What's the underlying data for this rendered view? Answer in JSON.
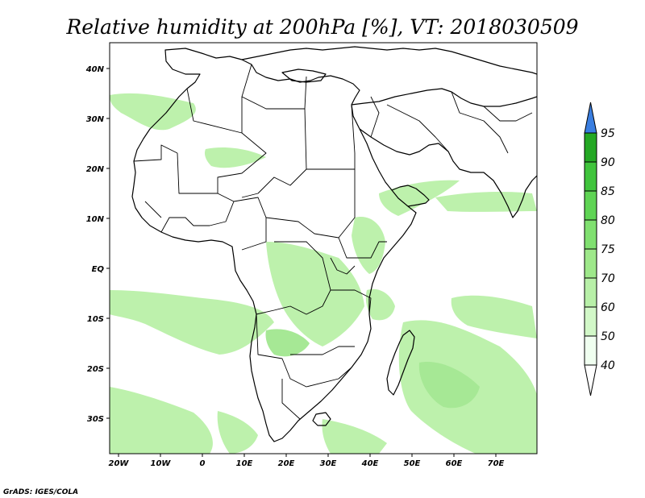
{
  "title": "Relative humidity at 200hPa [%], VT: 2018030509",
  "credit": "GrADS: IGES/COLA",
  "map": {
    "lon_labels": [
      "20W",
      "10W",
      "0",
      "10E",
      "20E",
      "30E",
      "40E",
      "50E",
      "60E",
      "70E"
    ],
    "lat_labels": [
      "40N",
      "30N",
      "20N",
      "10N",
      "EQ",
      "10S",
      "20S",
      "30S"
    ]
  },
  "colorbar": {
    "levels": [
      "40",
      "50",
      "60",
      "70",
      "75",
      "80",
      "85",
      "90",
      "95"
    ],
    "colors": [
      "#f0fff0",
      "#d2f8c8",
      "#b8f0a8",
      "#9ee88a",
      "#80e070",
      "#5fd454",
      "#40c43c",
      "#24a824",
      "#3a7ee0"
    ]
  }
}
